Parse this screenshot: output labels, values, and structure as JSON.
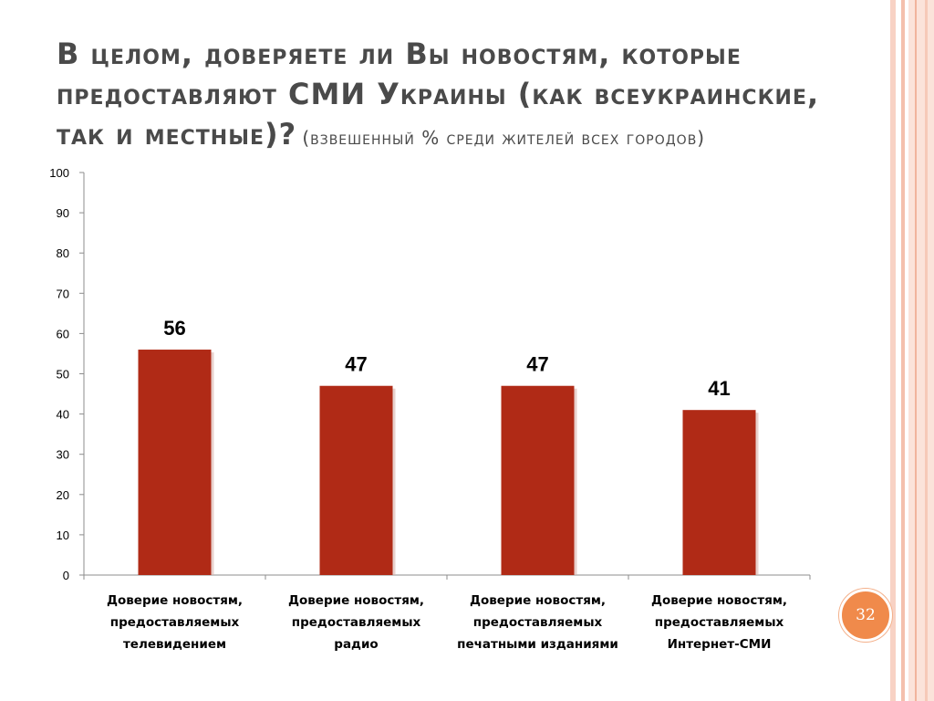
{
  "slide": {
    "title_main": "В целом, доверяете ли Вы новостям, которые предоставляют СМИ Украины (как всеукраинские, так и местные)?",
    "title_sub": "(взвешенный % среди жителей всех городов)",
    "page_number": "32"
  },
  "colors": {
    "bar": "#b02a16",
    "accent": "#f08a4b"
  },
  "chart_data": {
    "type": "bar",
    "categories": [
      [
        "Доверие новостям,",
        "предоставляемых",
        "телевидением"
      ],
      [
        "Доверие новостям,",
        "предоставляемых",
        "радио"
      ],
      [
        "Доверие новостям,",
        "предоставляемых",
        "печатными изданиями"
      ],
      [
        "Доверие новостям,",
        "предоставляемых",
        "Интернет-СМИ"
      ]
    ],
    "values": [
      56,
      47,
      47,
      41
    ],
    "data_labels": [
      "56",
      "47",
      "47",
      "41"
    ],
    "ylim": [
      0,
      100
    ],
    "yticks": [
      0,
      10,
      20,
      30,
      40,
      50,
      60,
      70,
      80,
      90,
      100
    ],
    "grid": false,
    "legend": "none"
  }
}
